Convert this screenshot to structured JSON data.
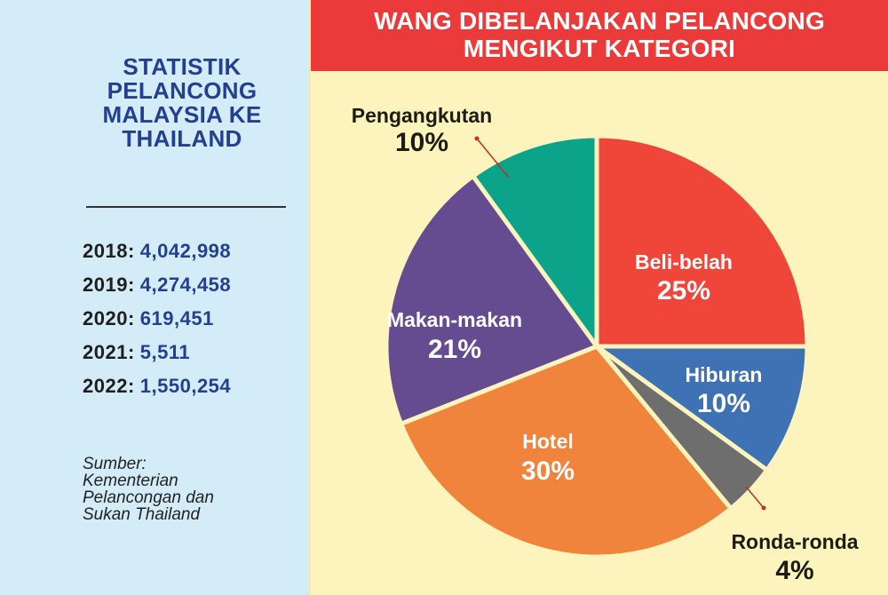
{
  "left_panel": {
    "title": "STATISTIK PELANCONG MALAYSIA KE THAILAND",
    "stats": [
      {
        "year": "2018:",
        "value": "4,042,998"
      },
      {
        "year": "2019:",
        "value": "4,274,458"
      },
      {
        "year": "2020:",
        "value": "619,451"
      },
      {
        "year": "2021:",
        "value": "5,511"
      },
      {
        "year": "2022:",
        "value": "1,550,254"
      }
    ],
    "source": [
      "Sumber:",
      "Kementerian",
      "Pelancongan dan",
      "Sukan Thailand"
    ]
  },
  "colors": {
    "left_bg": "#d4ecf8",
    "right_bg": "#fdf3bd",
    "header_bg": "#ea3b3a",
    "title_blue": "#233f8f"
  },
  "chart_data": {
    "type": "pie",
    "title": "WANG DIBELANJAKAN PELANCONG MENGIKUT KATEGORI",
    "start": "top",
    "direction": "clockwise",
    "slices": [
      {
        "label": "Beli-belah",
        "value": 25,
        "display": "25%",
        "color": "#f0463a",
        "label_position": "inside"
      },
      {
        "label": "Hiburan",
        "value": 10,
        "display": "10%",
        "color": "#3e72b4",
        "label_position": "inside"
      },
      {
        "label": "Ronda-ronda",
        "value": 4,
        "display": "4%",
        "color": "#6e6e6e",
        "label_position": "outside"
      },
      {
        "label": "Hotel",
        "value": 30,
        "display": "30%",
        "color": "#f0843c",
        "label_position": "inside"
      },
      {
        "label": "Makan-makan",
        "value": 21,
        "display": "21%",
        "color": "#654b8f",
        "label_position": "inside"
      },
      {
        "label": "Pengangkutan",
        "value": 10,
        "display": "10%",
        "color": "#0ca38b",
        "label_position": "outside"
      }
    ]
  }
}
